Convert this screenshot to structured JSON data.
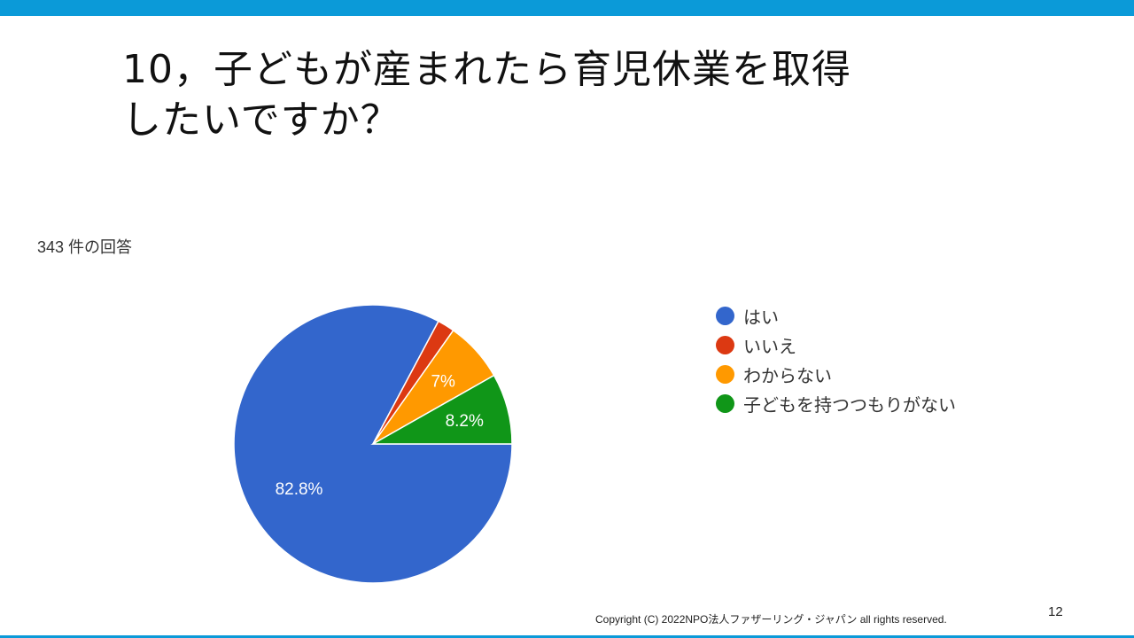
{
  "slide": {
    "title_line1": "10，子どもが産まれたら育児休業を取得",
    "title_line2": "したいですか？",
    "response_count": "343 件の回答",
    "copyright": "Copyright (C) 2022NPO法人ファザーリング・ジャパン all rights reserved.",
    "page_number": "12"
  },
  "chart_data": {
    "type": "pie",
    "title": "",
    "total_responses": 343,
    "slices": [
      {
        "label": "はい",
        "value": 82.8,
        "display": "82.8%",
        "color": "#3366cc"
      },
      {
        "label": "いいえ",
        "value": 2.0,
        "display": "",
        "color": "#dc3912"
      },
      {
        "label": "わからない",
        "value": 7.0,
        "display": "7%",
        "color": "#ff9900"
      },
      {
        "label": "子どもを持つつもりがない",
        "value": 8.2,
        "display": "8.2%",
        "color": "#109618"
      }
    ],
    "legend_position": "right"
  }
}
